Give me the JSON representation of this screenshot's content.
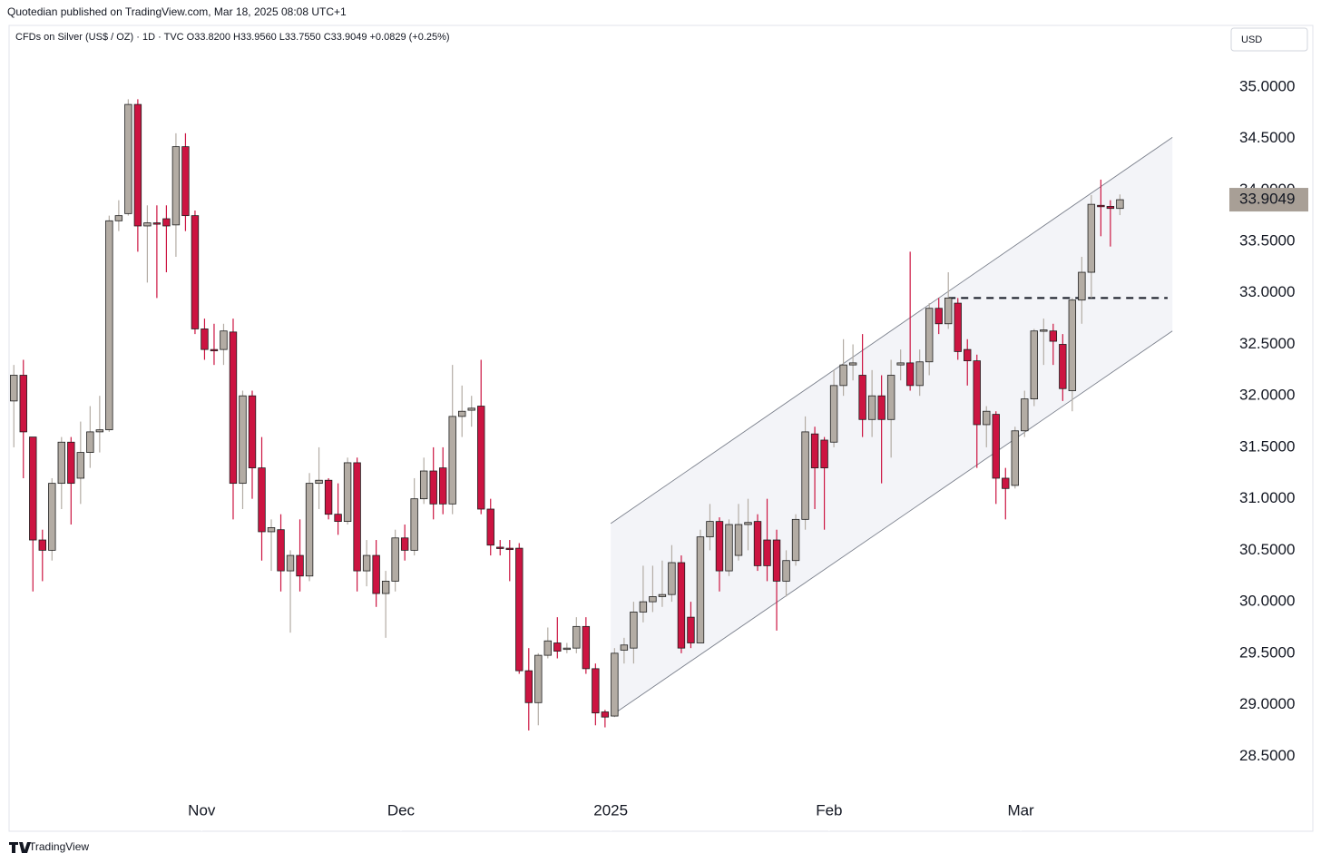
{
  "header": "Quotedian published on TradingView.com, Mar 18, 2025 08:08 UTC+1",
  "footer": "TradingView",
  "chart_data": {
    "type": "candlestick",
    "legend_text": "CFDs on Silver (US$ / OZ) · 1D · TVC  O33.8200  H33.9560  L33.7550  C33.9049  +0.0829 (+0.25%)",
    "currency": "USD",
    "up_color": "#b3aca4",
    "down_color": "#cc1441",
    "outline_color": "#1e1e1e",
    "ylim": [
      27.78,
      35.58
    ],
    "yticks": [
      {
        "value": 28.5,
        "label": "28.5000"
      },
      {
        "value": 29,
        "label": "29.0000"
      },
      {
        "value": 29.5,
        "label": "29.5000"
      },
      {
        "value": 30,
        "label": "30.0000"
      },
      {
        "value": 30.5,
        "label": "30.5000"
      },
      {
        "value": 31,
        "label": "31.0000"
      },
      {
        "value": 31.5,
        "label": "31.5000"
      },
      {
        "value": 32,
        "label": "32.0000"
      },
      {
        "value": 32.5,
        "label": "32.5000"
      },
      {
        "value": 33,
        "label": "33.0000"
      },
      {
        "value": 33.5,
        "label": "33.5000"
      },
      {
        "value": 34,
        "label": "34.0000"
      },
      {
        "value": 34.5,
        "label": "34.5000"
      },
      {
        "value": 35,
        "label": "35.0000"
      }
    ],
    "xlim": [
      -0.5,
      127
    ],
    "xticks": [
      {
        "value": 19.7,
        "label": "Nov"
      },
      {
        "value": 40.6,
        "label": "Dec"
      },
      {
        "value": 62.6,
        "label": "2025"
      },
      {
        "value": 85.5,
        "label": "Feb"
      },
      {
        "value": 105.6,
        "label": "Mar"
      }
    ],
    "ohlc": [
      [
        31.95,
        32.3,
        31.5,
        32.2
      ],
      [
        32.2,
        32.35,
        31.2,
        31.65
      ],
      [
        31.6,
        31.6,
        30.1,
        30.6
      ],
      [
        30.6,
        30.7,
        30.2,
        30.5
      ],
      [
        30.5,
        31.2,
        30.4,
        31.15
      ],
      [
        31.15,
        31.6,
        30.9,
        31.55
      ],
      [
        31.55,
        31.6,
        30.75,
        31.15
      ],
      [
        31.2,
        31.75,
        30.95,
        31.45
      ],
      [
        31.45,
        31.9,
        31.3,
        31.65
      ],
      [
        31.65,
        32.0,
        31.45,
        31.67
      ],
      [
        31.67,
        33.75,
        31.65,
        33.7
      ],
      [
        33.7,
        33.9,
        33.6,
        33.75
      ],
      [
        33.77,
        34.88,
        33.75,
        34.83
      ],
      [
        34.83,
        34.88,
        33.4,
        33.65
      ],
      [
        33.65,
        33.85,
        33.1,
        33.68
      ],
      [
        33.68,
        33.85,
        32.95,
        33.67
      ],
      [
        33.72,
        33.85,
        33.2,
        33.65
      ],
      [
        33.66,
        34.55,
        33.35,
        34.42
      ],
      [
        34.42,
        34.55,
        33.6,
        33.75
      ],
      [
        33.75,
        33.8,
        32.6,
        32.65
      ],
      [
        32.65,
        32.75,
        32.35,
        32.45
      ],
      [
        32.45,
        32.7,
        32.3,
        32.44
      ],
      [
        32.45,
        32.7,
        32.3,
        32.63
      ],
      [
        32.62,
        32.75,
        30.8,
        31.15
      ],
      [
        31.15,
        32.05,
        30.9,
        32.0
      ],
      [
        32.0,
        32.05,
        31.0,
        31.3
      ],
      [
        31.3,
        31.6,
        30.4,
        30.68
      ],
      [
        30.68,
        30.8,
        30.3,
        30.72
      ],
      [
        30.7,
        30.85,
        30.1,
        30.3
      ],
      [
        30.3,
        30.5,
        29.7,
        30.45
      ],
      [
        30.45,
        30.8,
        30.1,
        30.25
      ],
      [
        30.25,
        31.25,
        30.2,
        31.15
      ],
      [
        31.15,
        31.5,
        30.9,
        31.18
      ],
      [
        31.18,
        31.2,
        30.8,
        30.85
      ],
      [
        30.85,
        31.15,
        30.65,
        30.78
      ],
      [
        30.78,
        31.4,
        30.75,
        31.35
      ],
      [
        31.35,
        31.4,
        30.1,
        30.3
      ],
      [
        30.3,
        30.6,
        30.15,
        30.45
      ],
      [
        30.45,
        30.6,
        29.95,
        30.08
      ],
      [
        30.08,
        30.3,
        29.65,
        30.2
      ],
      [
        30.2,
        30.7,
        30.1,
        30.62
      ],
      [
        30.62,
        30.75,
        30.4,
        30.5
      ],
      [
        30.5,
        31.2,
        30.45,
        31.0
      ],
      [
        31.0,
        31.4,
        30.95,
        31.27
      ],
      [
        31.27,
        31.5,
        30.8,
        30.95
      ],
      [
        31.3,
        31.5,
        30.85,
        30.95
      ],
      [
        30.95,
        32.3,
        30.85,
        31.8
      ],
      [
        31.8,
        32.1,
        31.6,
        31.85
      ],
      [
        31.86,
        32.0,
        31.7,
        31.88
      ],
      [
        31.9,
        32.35,
        30.85,
        30.9
      ],
      [
        30.9,
        31.0,
        30.45,
        30.55
      ],
      [
        30.53,
        30.6,
        30.45,
        30.52
      ],
      [
        30.52,
        30.6,
        30.2,
        30.51
      ],
      [
        30.52,
        30.57,
        29.3,
        29.33
      ],
      [
        29.33,
        29.55,
        28.75,
        29.02
      ],
      [
        29.02,
        29.5,
        28.8,
        29.48
      ],
      [
        29.48,
        29.75,
        29.45,
        29.62
      ],
      [
        29.6,
        29.85,
        29.45,
        29.52
      ],
      [
        29.55,
        29.6,
        29.5,
        29.55
      ],
      [
        29.55,
        29.85,
        29.5,
        29.76
      ],
      [
        29.76,
        29.85,
        29.3,
        29.35
      ],
      [
        29.35,
        29.4,
        28.8,
        28.92
      ],
      [
        28.93,
        28.95,
        28.78,
        28.88
      ],
      [
        28.89,
        29.55,
        28.88,
        29.5
      ],
      [
        29.53,
        29.65,
        29.4,
        29.58
      ],
      [
        29.55,
        30.0,
        29.4,
        29.9
      ],
      [
        29.9,
        30.35,
        29.8,
        30.0
      ],
      [
        30.0,
        30.35,
        29.9,
        30.05
      ],
      [
        30.05,
        30.4,
        29.95,
        30.07
      ],
      [
        30.07,
        30.55,
        30.0,
        30.38
      ],
      [
        30.38,
        30.45,
        29.5,
        29.55
      ],
      [
        29.85,
        30.0,
        29.55,
        29.6
      ],
      [
        29.6,
        30.7,
        29.6,
        30.63
      ],
      [
        30.63,
        30.95,
        30.5,
        30.78
      ],
      [
        30.78,
        30.82,
        30.1,
        30.3
      ],
      [
        30.3,
        30.8,
        30.25,
        30.75
      ],
      [
        30.45,
        30.95,
        30.4,
        30.75
      ],
      [
        30.75,
        31.0,
        30.5,
        30.77
      ],
      [
        30.78,
        30.85,
        30.3,
        30.35
      ],
      [
        30.6,
        31.0,
        30.2,
        30.35
      ],
      [
        30.6,
        30.7,
        29.72,
        30.2
      ],
      [
        30.2,
        30.5,
        30.05,
        30.4
      ],
      [
        30.4,
        30.85,
        30.35,
        30.8
      ],
      [
        30.8,
        31.8,
        30.7,
        31.65
      ],
      [
        31.63,
        31.7,
        30.9,
        31.3
      ],
      [
        31.57,
        31.6,
        30.7,
        31.3
      ],
      [
        31.55,
        32.25,
        31.5,
        32.1
      ],
      [
        32.1,
        32.55,
        32.0,
        32.3
      ],
      [
        32.3,
        32.5,
        32.15,
        32.32
      ],
      [
        32.2,
        32.6,
        31.6,
        31.77
      ],
      [
        31.77,
        32.25,
        31.6,
        32.0
      ],
      [
        32.0,
        32.2,
        31.15,
        31.77
      ],
      [
        31.77,
        32.35,
        31.4,
        32.2
      ],
      [
        32.3,
        32.45,
        32.15,
        32.32
      ],
      [
        32.32,
        33.4,
        32.05,
        32.1
      ],
      [
        32.1,
        32.45,
        32.0,
        32.33
      ],
      [
        32.33,
        32.9,
        32.2,
        32.85
      ],
      [
        32.85,
        32.95,
        32.6,
        32.7
      ],
      [
        32.7,
        33.2,
        32.65,
        32.95
      ],
      [
        32.9,
        32.95,
        32.35,
        32.43
      ],
      [
        32.45,
        32.55,
        32.1,
        32.34
      ],
      [
        32.34,
        32.4,
        31.3,
        31.72
      ],
      [
        31.72,
        31.9,
        31.5,
        31.85
      ],
      [
        31.82,
        31.85,
        30.95,
        31.2
      ],
      [
        31.2,
        31.3,
        30.8,
        31.1
      ],
      [
        31.13,
        31.7,
        31.1,
        31.66
      ],
      [
        31.66,
        32.05,
        31.6,
        31.97
      ],
      [
        31.97,
        32.65,
        31.9,
        32.63
      ],
      [
        32.63,
        32.75,
        32.3,
        32.64
      ],
      [
        32.63,
        32.7,
        32.3,
        32.53
      ],
      [
        32.5,
        32.6,
        31.95,
        32.07
      ],
      [
        32.05,
        32.95,
        31.85,
        32.93
      ],
      [
        32.93,
        33.35,
        32.7,
        33.2
      ],
      [
        33.2,
        33.95,
        32.95,
        33.86
      ],
      [
        33.85,
        34.1,
        33.55,
        33.84
      ],
      [
        33.84,
        33.9,
        33.45,
        33.82
      ],
      [
        33.82,
        33.956,
        33.755,
        33.9049
      ]
    ],
    "channel": {
      "x": [
        62.6,
        121.5
      ],
      "upper": [
        30.76,
        34.51
      ],
      "lower": [
        28.89,
        32.63
      ]
    },
    "level": {
      "value": 32.95,
      "x": [
        98,
        121
      ]
    }
  }
}
